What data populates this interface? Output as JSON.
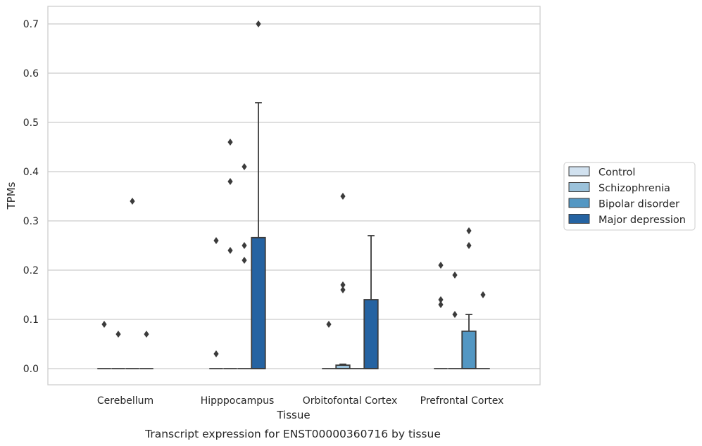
{
  "chart_data": {
    "type": "box",
    "title": "",
    "caption": "Transcript expression for ENST00000360716 by tissue",
    "xlabel": "Tissue",
    "ylabel": "TPMs",
    "ylim": [
      -0.035,
      0.735
    ],
    "yticks": [
      0.0,
      0.1,
      0.2,
      0.3,
      0.4,
      0.5,
      0.6,
      0.7
    ],
    "ytick_labels": [
      "0.0",
      "0.1",
      "0.2",
      "0.3",
      "0.4",
      "0.5",
      "0.6",
      "0.7"
    ],
    "grid": "horizontal",
    "legend_position": "right",
    "categories": [
      "Cerebellum",
      "Hipppocampus",
      "Orbitofontal Cortex",
      "Prefrontal Cortex"
    ],
    "series": [
      {
        "name": "Control",
        "color": "#d1e1ef",
        "boxes": [
          {
            "q1": 0,
            "median": 0,
            "q3": 0,
            "whisker_low": 0,
            "whisker_high": 0,
            "outliers": [
              0.09
            ]
          },
          {
            "q1": 0,
            "median": 0,
            "q3": 0,
            "whisker_low": 0,
            "whisker_high": 0,
            "outliers": [
              0.03,
              0.26
            ]
          },
          {
            "q1": 0,
            "median": 0,
            "q3": 0,
            "whisker_low": 0,
            "whisker_high": 0,
            "outliers": [
              0.09
            ]
          },
          {
            "q1": 0,
            "median": 0,
            "q3": 0,
            "whisker_low": 0,
            "whisker_high": 0,
            "outliers": [
              0.13,
              0.14,
              0.21
            ]
          }
        ]
      },
      {
        "name": "Schizophrenia",
        "color": "#9bc2db",
        "boxes": [
          {
            "q1": 0,
            "median": 0,
            "q3": 0,
            "whisker_low": 0,
            "whisker_high": 0,
            "outliers": [
              0.07
            ]
          },
          {
            "q1": 0,
            "median": 0,
            "q3": 0,
            "whisker_low": 0,
            "whisker_high": 0,
            "outliers": [
              0.24,
              0.38,
              0.46
            ]
          },
          {
            "q1": 0,
            "median": 0,
            "q3": 0.007,
            "whisker_low": 0,
            "whisker_high": 0.009,
            "outliers": [
              0.16,
              0.17,
              0.35
            ]
          },
          {
            "q1": 0,
            "median": 0,
            "q3": 0,
            "whisker_low": 0,
            "whisker_high": 0,
            "outliers": [
              0.11,
              0.19
            ]
          }
        ]
      },
      {
        "name": "Bipolar disorder",
        "color": "#5397c3",
        "boxes": [
          {
            "q1": 0,
            "median": 0,
            "q3": 0,
            "whisker_low": 0,
            "whisker_high": 0,
            "outliers": [
              0.34
            ]
          },
          {
            "q1": 0,
            "median": 0,
            "q3": 0,
            "whisker_low": 0,
            "whisker_high": 0,
            "outliers": [
              0.22,
              0.25,
              0.41
            ]
          },
          {
            "q1": 0,
            "median": 0,
            "q3": 0,
            "whisker_low": 0,
            "whisker_high": 0,
            "outliers": []
          },
          {
            "q1": 0,
            "median": 0,
            "q3": 0.076,
            "whisker_low": 0,
            "whisker_high": 0.11,
            "outliers": [
              0.25,
              0.28
            ]
          }
        ]
      },
      {
        "name": "Major depression",
        "color": "#2563a2",
        "boxes": [
          {
            "q1": 0,
            "median": 0,
            "q3": 0,
            "whisker_low": 0,
            "whisker_high": 0,
            "outliers": [
              0.07
            ]
          },
          {
            "q1": 0,
            "median": 0,
            "q3": 0.266,
            "whisker_low": 0,
            "whisker_high": 0.54,
            "outliers": [
              0.7
            ]
          },
          {
            "q1": 0,
            "median": 0,
            "q3": 0.14,
            "whisker_low": 0,
            "whisker_high": 0.27,
            "outliers": []
          },
          {
            "q1": 0,
            "median": 0,
            "q3": 0,
            "whisker_low": 0,
            "whisker_high": 0,
            "outliers": [
              0.15
            ]
          }
        ]
      }
    ]
  }
}
